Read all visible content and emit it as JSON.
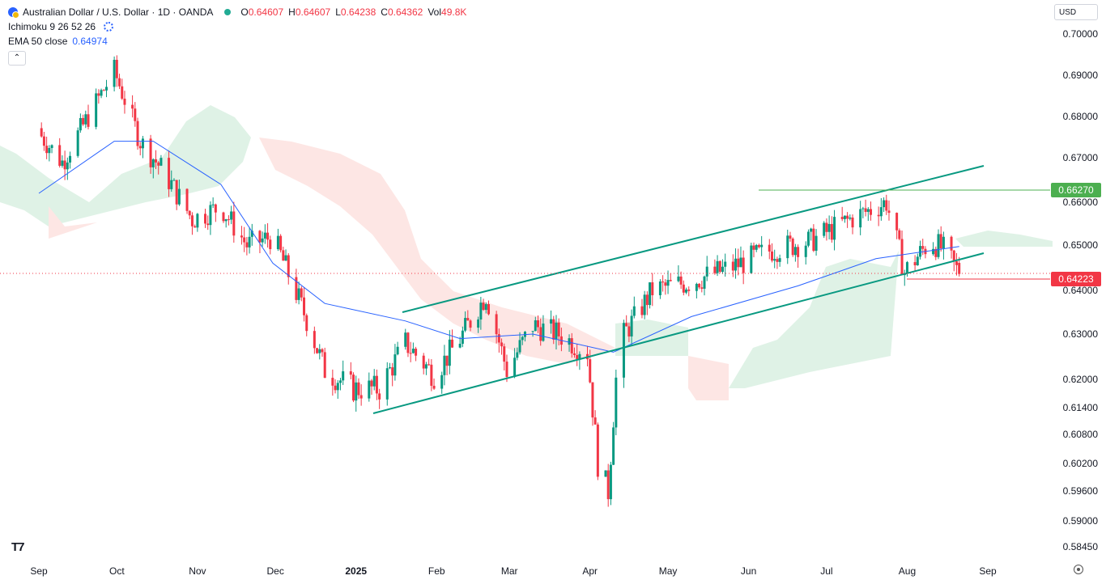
{
  "header": {
    "symbol_title": "Australian Dollar / U.S. Dollar · 1D · OANDA",
    "ohlc": [
      {
        "key": "O",
        "value": "0.64607"
      },
      {
        "key": "H",
        "value": "0.64607"
      },
      {
        "key": "L",
        "value": "0.64238"
      },
      {
        "key": "C",
        "value": "0.64362"
      },
      {
        "key": "Vol",
        "value": "49.8K"
      }
    ],
    "ichimoku_label": "Ichimoku 9 26 52 26",
    "ema_label": "EMA 50 close",
    "ema_value": "0.64974",
    "collapse_glyph": "⌃",
    "currency": "USD"
  },
  "colors": {
    "up": "#2962ff",
    "candle_up": "#089981",
    "candle_down": "#f23645",
    "ema": "#2962ff",
    "channel": "#089981",
    "resistance": "#4caf50",
    "price_line": "#f23645",
    "cloud_bull": "#dff2e6",
    "cloud_bear": "#fde6e4"
  },
  "price_labels": {
    "resistance": "0.66270",
    "current": "0.64223"
  },
  "chart_data": {
    "type": "candlestick",
    "title": "Australian Dollar / U.S. Dollar · 1D · OANDA",
    "y_ticks": [
      "0.70000",
      "0.69000",
      "0.68000",
      "0.67000",
      "0.66000",
      "0.65000",
      "0.64000",
      "0.63000",
      "0.62000",
      "0.61400",
      "0.60800",
      "0.60200",
      "0.59600",
      "0.59000",
      "0.58450"
    ],
    "x_ticks": [
      "Sep",
      "Oct",
      "Nov",
      "Dec",
      "2025",
      "Feb",
      "Mar",
      "Apr",
      "May",
      "Jun",
      "Jul",
      "Aug",
      "Sep"
    ],
    "close_path": [
      [
        "2024-09-01",
        0.676
      ],
      [
        "2024-09-10",
        0.669
      ],
      [
        "2024-09-20",
        0.68
      ],
      [
        "2024-09-30",
        0.691
      ],
      [
        "2024-10-10",
        0.674
      ],
      [
        "2024-10-20",
        0.666
      ],
      [
        "2024-10-30",
        0.656
      ],
      [
        "2024-11-10",
        0.659
      ],
      [
        "2024-11-20",
        0.65
      ],
      [
        "2024-11-30",
        0.652
      ],
      [
        "2024-12-10",
        0.638
      ],
      [
        "2024-12-20",
        0.622
      ],
      [
        "2024-12-31",
        0.618
      ],
      [
        "2025-01-10",
        0.618
      ],
      [
        "2025-01-20",
        0.628
      ],
      [
        "2025-01-31",
        0.621
      ],
      [
        "2025-02-10",
        0.629
      ],
      [
        "2025-02-20",
        0.639
      ],
      [
        "2025-02-28",
        0.622
      ],
      [
        "2025-03-10",
        0.632
      ],
      [
        "2025-03-20",
        0.63
      ],
      [
        "2025-03-31",
        0.626
      ],
      [
        "2025-04-04",
        0.602
      ],
      [
        "2025-04-08",
        0.596
      ],
      [
        "2025-04-12",
        0.628
      ],
      [
        "2025-04-25",
        0.64
      ],
      [
        "2025-05-10",
        0.642
      ],
      [
        "2025-05-25",
        0.645
      ],
      [
        "2025-06-10",
        0.649
      ],
      [
        "2025-06-25",
        0.651
      ],
      [
        "2025-07-10",
        0.656
      ],
      [
        "2025-07-24",
        0.66
      ],
      [
        "2025-07-31",
        0.644
      ],
      [
        "2025-08-10",
        0.651
      ],
      [
        "2025-08-15",
        0.649
      ],
      [
        "2025-08-21",
        0.6436
      ]
    ],
    "ema50_path": [
      [
        "2024-09-01",
        0.662
      ],
      [
        "2024-09-30",
        0.674
      ],
      [
        "2024-10-15",
        0.674
      ],
      [
        "2024-11-10",
        0.664
      ],
      [
        "2024-11-30",
        0.646
      ],
      [
        "2024-12-20",
        0.637
      ],
      [
        "2025-01-20",
        0.633
      ],
      [
        "2025-02-10",
        0.629
      ],
      [
        "2025-03-10",
        0.63
      ],
      [
        "2025-04-10",
        0.626
      ],
      [
        "2025-05-10",
        0.634
      ],
      [
        "2025-06-20",
        0.641
      ],
      [
        "2025-07-20",
        0.647
      ],
      [
        "2025-08-21",
        0.6497
      ]
    ],
    "resistance_level": 0.6627,
    "current_price": 0.64223,
    "last_candle": {
      "open": 0.64607,
      "high": 0.64607,
      "low": 0.64238,
      "close": 0.64362,
      "volume": "49.8K"
    },
    "ema_50_last": 0.64974,
    "annotations": [
      "rising channel from Jan 2025 to Aug 2025",
      "horizontal resistance at 0.66270"
    ]
  }
}
